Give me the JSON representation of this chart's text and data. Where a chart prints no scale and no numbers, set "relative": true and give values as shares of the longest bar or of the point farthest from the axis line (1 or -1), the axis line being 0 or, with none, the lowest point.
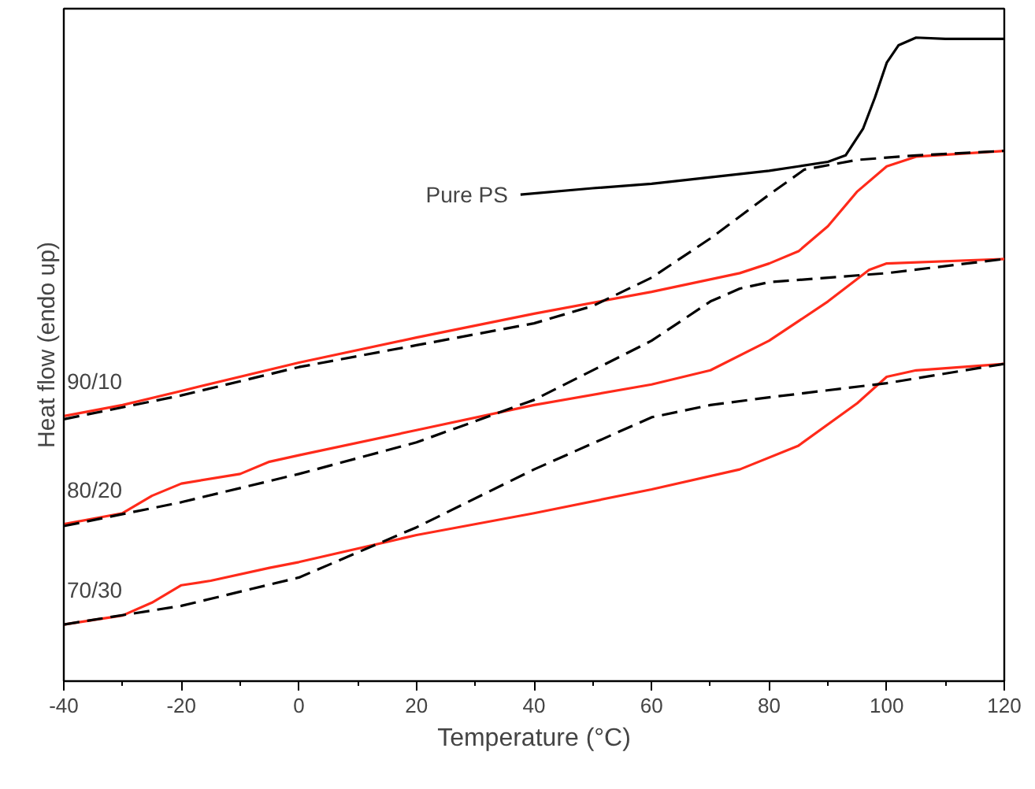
{
  "chart_data": {
    "type": "line",
    "relative": true,
    "xlabel": "Temperature (°C)",
    "ylabel": "Heat flow (endo up)",
    "xlim": [
      -40,
      120
    ],
    "xticks": [
      -40,
      {
        "value": -30,
        "label": null
      },
      -20,
      {
        "value": -10,
        "label": null
      },
      0,
      {
        "value": 10,
        "label": null
      },
      20,
      {
        "value": 30,
        "label": null
      },
      40,
      {
        "value": 50,
        "label": null
      },
      60,
      {
        "value": 70,
        "label": null
      },
      80,
      {
        "value": 90,
        "label": null
      },
      100,
      {
        "value": 110,
        "label": null
      },
      120
    ],
    "grid": false,
    "tick_labels": "x",
    "series": [
      {
        "color": "#000000",
        "line_style": "solid",
        "x": [
          37.7,
          50,
          60,
          70,
          80,
          85,
          90,
          93,
          96,
          98,
          100,
          102,
          105,
          110,
          120
        ],
        "values": [
          0.756,
          0.766,
          0.773,
          0.783,
          0.793,
          0.8,
          0.807,
          0.817,
          0.859,
          0.907,
          0.961,
          0.988,
          1.0,
          0.998,
          0.998
        ]
      },
      {
        "color": "#ff2a1a",
        "line_style": "solid",
        "x": [
          -40,
          -30,
          -20,
          0,
          20,
          40,
          60,
          75,
          80,
          85,
          90,
          95,
          100,
          105,
          120
        ],
        "values": [
          0.412,
          0.429,
          0.451,
          0.495,
          0.534,
          0.571,
          0.605,
          0.634,
          0.649,
          0.668,
          0.707,
          0.761,
          0.8,
          0.815,
          0.824
        ]
      },
      {
        "color": "#000000",
        "line_style": "dashed",
        "x": [
          -40,
          -20,
          0,
          20,
          40,
          50,
          60,
          70,
          80,
          86,
          95,
          105,
          120
        ],
        "values": [
          0.407,
          0.444,
          0.488,
          0.522,
          0.556,
          0.583,
          0.627,
          0.688,
          0.756,
          0.795,
          0.81,
          0.817,
          0.824
        ]
      },
      {
        "color": "#ff2a1a",
        "line_style": "solid",
        "x": [
          -40,
          -30,
          -25,
          -20,
          -10,
          -5,
          0,
          20,
          40,
          60,
          70,
          80,
          90,
          97,
          100,
          120
        ],
        "values": [
          0.244,
          0.261,
          0.288,
          0.307,
          0.322,
          0.341,
          0.351,
          0.39,
          0.429,
          0.461,
          0.483,
          0.529,
          0.59,
          0.639,
          0.649,
          0.656
        ]
      },
      {
        "color": "#000000",
        "line_style": "dashed",
        "x": [
          -40,
          -20,
          0,
          20,
          40,
          60,
          70,
          75,
          80,
          100,
          120
        ],
        "values": [
          0.241,
          0.278,
          0.322,
          0.371,
          0.437,
          0.529,
          0.59,
          0.61,
          0.62,
          0.634,
          0.656
        ]
      },
      {
        "color": "#ff2a1a",
        "line_style": "solid",
        "x": [
          -40,
          -30,
          -25,
          -20,
          -15,
          -5,
          0,
          20,
          40,
          60,
          75,
          85,
          95,
          100,
          105,
          120
        ],
        "values": [
          0.088,
          0.102,
          0.122,
          0.149,
          0.156,
          0.176,
          0.185,
          0.227,
          0.261,
          0.298,
          0.329,
          0.366,
          0.432,
          0.473,
          0.483,
          0.493
        ]
      },
      {
        "color": "#000000",
        "line_style": "dashed",
        "x": [
          -40,
          -20,
          0,
          20,
          40,
          60,
          70,
          80,
          100,
          120
        ],
        "values": [
          0.088,
          0.117,
          0.161,
          0.239,
          0.329,
          0.41,
          0.429,
          0.441,
          0.463,
          0.493
        ]
      }
    ],
    "annotations": [
      "Pure PS",
      "90/10",
      "80/20",
      "70/30"
    ]
  }
}
